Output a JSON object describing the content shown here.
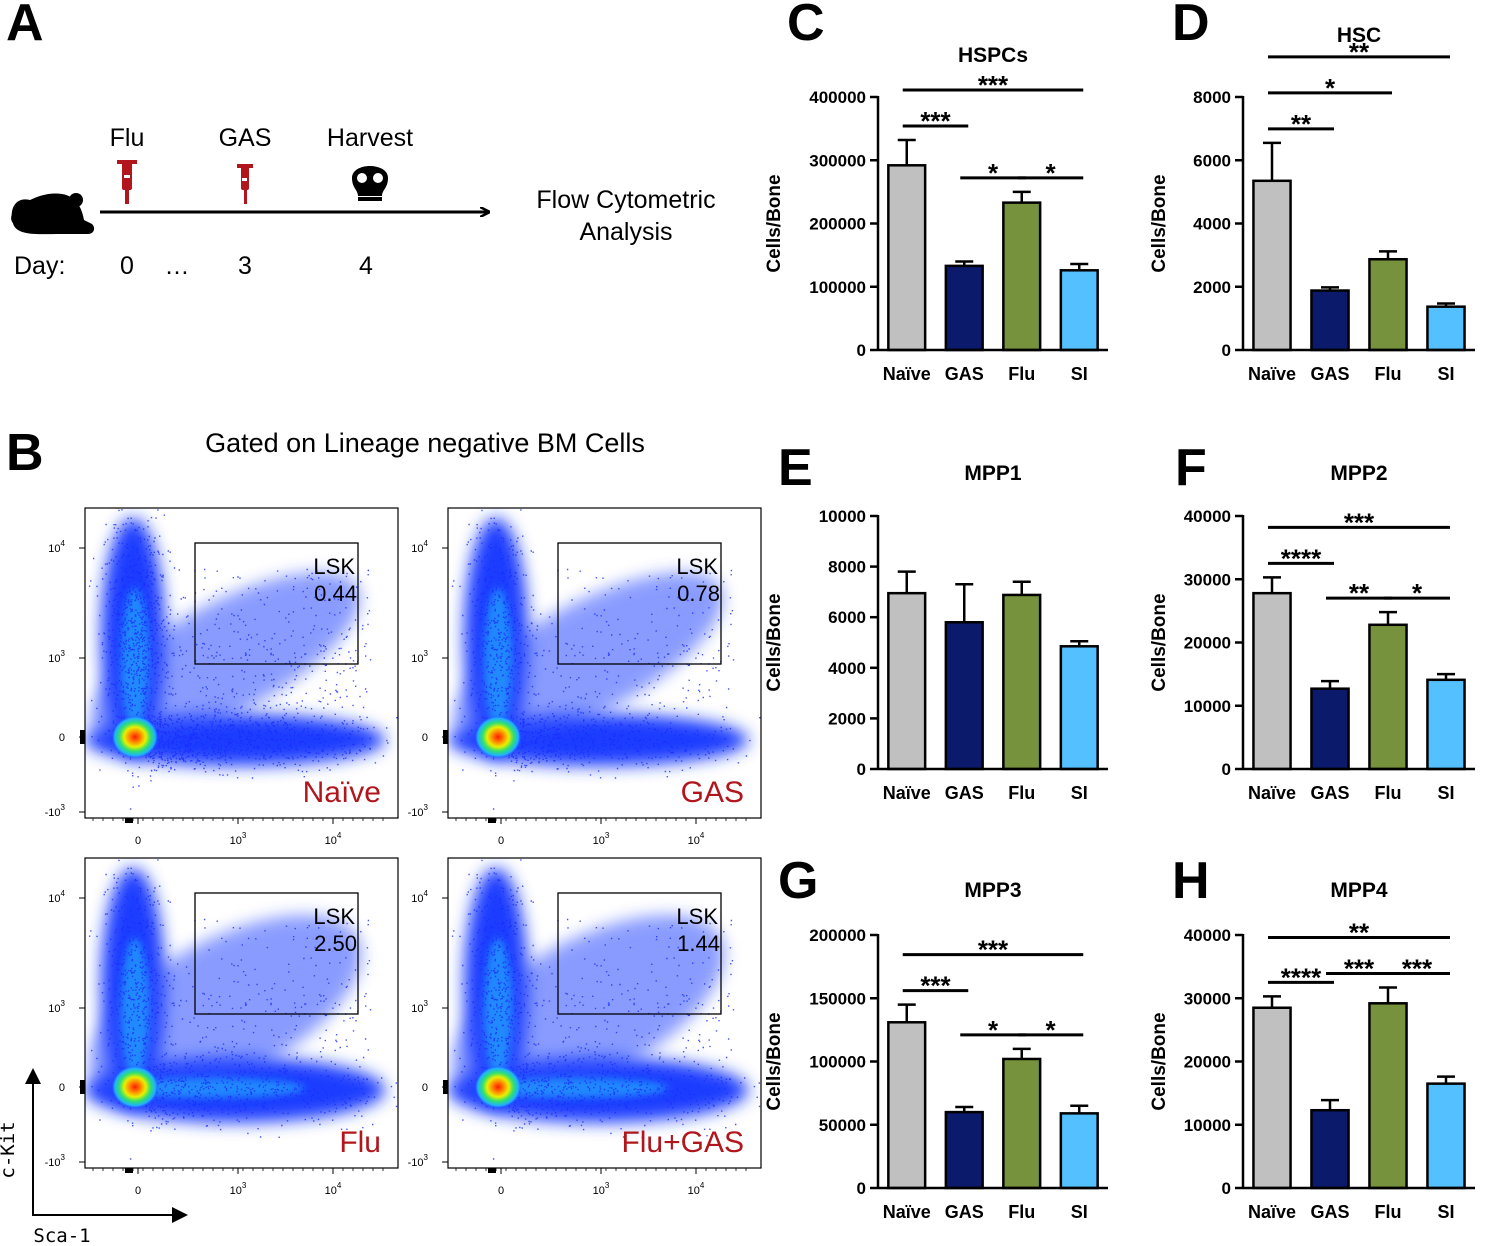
{
  "panel_a": {
    "letter": "A",
    "events": [
      {
        "name": "Flu",
        "day": "0"
      },
      {
        "name": "GAS",
        "day": "3"
      },
      {
        "name": "Harvest",
        "day": "4"
      }
    ],
    "day_label": "Day:",
    "ellipsis": "…",
    "outcome": [
      "Flow Cytometric",
      "Analysis"
    ]
  },
  "panel_b": {
    "letter": "B",
    "title": "Gated on Lineage negative BM Cells",
    "x_axis_label": "Sca-1",
    "y_axis_label": "c-Kit",
    "xticks": [
      "0",
      {
        "base": "10",
        "exp": "3"
      },
      {
        "base": "10",
        "exp": "4"
      }
    ],
    "yticks": [
      {
        "base": "10",
        "exp": "4"
      },
      {
        "base": "10",
        "exp": "3"
      },
      "0",
      {
        "base": "-10",
        "exp": "3"
      }
    ],
    "plots": [
      {
        "sample": "Naïve",
        "gate": "LSK",
        "percent": "0.44"
      },
      {
        "sample": "GAS",
        "gate": "LSK",
        "percent": "0.78"
      },
      {
        "sample": "Flu",
        "gate": "LSK",
        "percent": "2.50"
      },
      {
        "sample": "Flu+GAS",
        "gate": "LSK",
        "percent": "1.44"
      }
    ]
  },
  "chart_data": [
    {
      "letter": "C",
      "type": "bar",
      "title": "HSPCs",
      "ylabel": "Cells/Bone",
      "categories": [
        "Naïve",
        "GAS",
        "Flu",
        "SI"
      ],
      "values": [
        292000,
        133000,
        233000,
        126000
      ],
      "errors": [
        40000,
        7000,
        17000,
        10000
      ],
      "colors": [
        "#c0c0c0",
        "#0b1a6b",
        "#76923c",
        "#55c0ff"
      ],
      "ylim": [
        0,
        400000
      ],
      "yticks": [
        0,
        100000,
        200000,
        300000,
        400000
      ],
      "significance": [
        {
          "from": "Naïve",
          "to": "GAS",
          "label": "***"
        },
        {
          "from": "GAS",
          "to": "Flu",
          "label": "*"
        },
        {
          "from": "Flu",
          "to": "SI",
          "label": "*"
        },
        {
          "from": "Naïve",
          "to": "SI",
          "label": "***"
        }
      ]
    },
    {
      "letter": "D",
      "type": "bar",
      "title": "HSC",
      "ylabel": "Cells/Bone",
      "categories": [
        "Naïve",
        "GAS",
        "Flu",
        "SI"
      ],
      "values": [
        5350,
        1880,
        2870,
        1370
      ],
      "errors": [
        1200,
        100,
        250,
        100
      ],
      "colors": [
        "#c0c0c0",
        "#0b1a6b",
        "#76923c",
        "#55c0ff"
      ],
      "ylim": [
        0,
        8000
      ],
      "yticks": [
        0,
        2000,
        4000,
        6000,
        8000
      ],
      "significance": [
        {
          "from": "Naïve",
          "to": "GAS",
          "label": "**"
        },
        {
          "from": "Naïve",
          "to": "Flu",
          "label": "*"
        },
        {
          "from": "Naïve",
          "to": "SI",
          "label": "**"
        }
      ]
    },
    {
      "letter": "E",
      "type": "bar",
      "title": "MPP1",
      "ylabel": "Cells/Bone",
      "categories": [
        "Naïve",
        "GAS",
        "Flu",
        "SI"
      ],
      "values": [
        6950,
        5800,
        6880,
        4850
      ],
      "errors": [
        850,
        1500,
        520,
        200
      ],
      "colors": [
        "#c0c0c0",
        "#0b1a6b",
        "#76923c",
        "#55c0ff"
      ],
      "ylim": [
        0,
        10000
      ],
      "yticks": [
        0,
        2000,
        4000,
        6000,
        8000,
        10000
      ],
      "significance": []
    },
    {
      "letter": "F",
      "type": "bar",
      "title": "MPP2",
      "ylabel": "Cells/Bone",
      "categories": [
        "Naïve",
        "GAS",
        "Flu",
        "SI"
      ],
      "values": [
        27800,
        12700,
        22800,
        14100
      ],
      "errors": [
        2500,
        1200,
        2000,
        900
      ],
      "colors": [
        "#c0c0c0",
        "#0b1a6b",
        "#76923c",
        "#55c0ff"
      ],
      "ylim": [
        0,
        40000
      ],
      "yticks": [
        0,
        10000,
        20000,
        30000,
        40000
      ],
      "significance": [
        {
          "from": "Naïve",
          "to": "GAS",
          "label": "****"
        },
        {
          "from": "GAS",
          "to": "Flu",
          "label": "**"
        },
        {
          "from": "Flu",
          "to": "SI",
          "label": "*"
        },
        {
          "from": "Naïve",
          "to": "SI",
          "label": "***"
        }
      ]
    },
    {
      "letter": "G",
      "type": "bar",
      "title": "MPP3",
      "ylabel": "Cells/Bone",
      "categories": [
        "Naïve",
        "GAS",
        "Flu",
        "SI"
      ],
      "values": [
        131000,
        60000,
        102000,
        59000
      ],
      "errors": [
        14000,
        4000,
        8000,
        6000
      ],
      "colors": [
        "#c0c0c0",
        "#0b1a6b",
        "#76923c",
        "#55c0ff"
      ],
      "ylim": [
        0,
        200000
      ],
      "yticks": [
        0,
        50000,
        100000,
        150000,
        200000
      ],
      "significance": [
        {
          "from": "Naïve",
          "to": "GAS",
          "label": "***"
        },
        {
          "from": "GAS",
          "to": "Flu",
          "label": "*"
        },
        {
          "from": "Flu",
          "to": "SI",
          "label": "*"
        },
        {
          "from": "Naïve",
          "to": "SI",
          "label": "***"
        }
      ]
    },
    {
      "letter": "H",
      "type": "bar",
      "title": "MPP4",
      "ylabel": "Cells/Bone",
      "categories": [
        "Naïve",
        "GAS",
        "Flu",
        "SI"
      ],
      "values": [
        28500,
        12300,
        29200,
        16500
      ],
      "errors": [
        1800,
        1600,
        2500,
        1100
      ],
      "colors": [
        "#c0c0c0",
        "#0b1a6b",
        "#76923c",
        "#55c0ff"
      ],
      "ylim": [
        0,
        40000
      ],
      "yticks": [
        0,
        10000,
        20000,
        30000,
        40000
      ],
      "significance": [
        {
          "from": "Naïve",
          "to": "GAS",
          "label": "****"
        },
        {
          "from": "GAS",
          "to": "Flu",
          "label": "***"
        },
        {
          "from": "Flu",
          "to": "SI",
          "label": "***"
        },
        {
          "from": "Naïve",
          "to": "SI",
          "label": "**"
        }
      ]
    }
  ]
}
